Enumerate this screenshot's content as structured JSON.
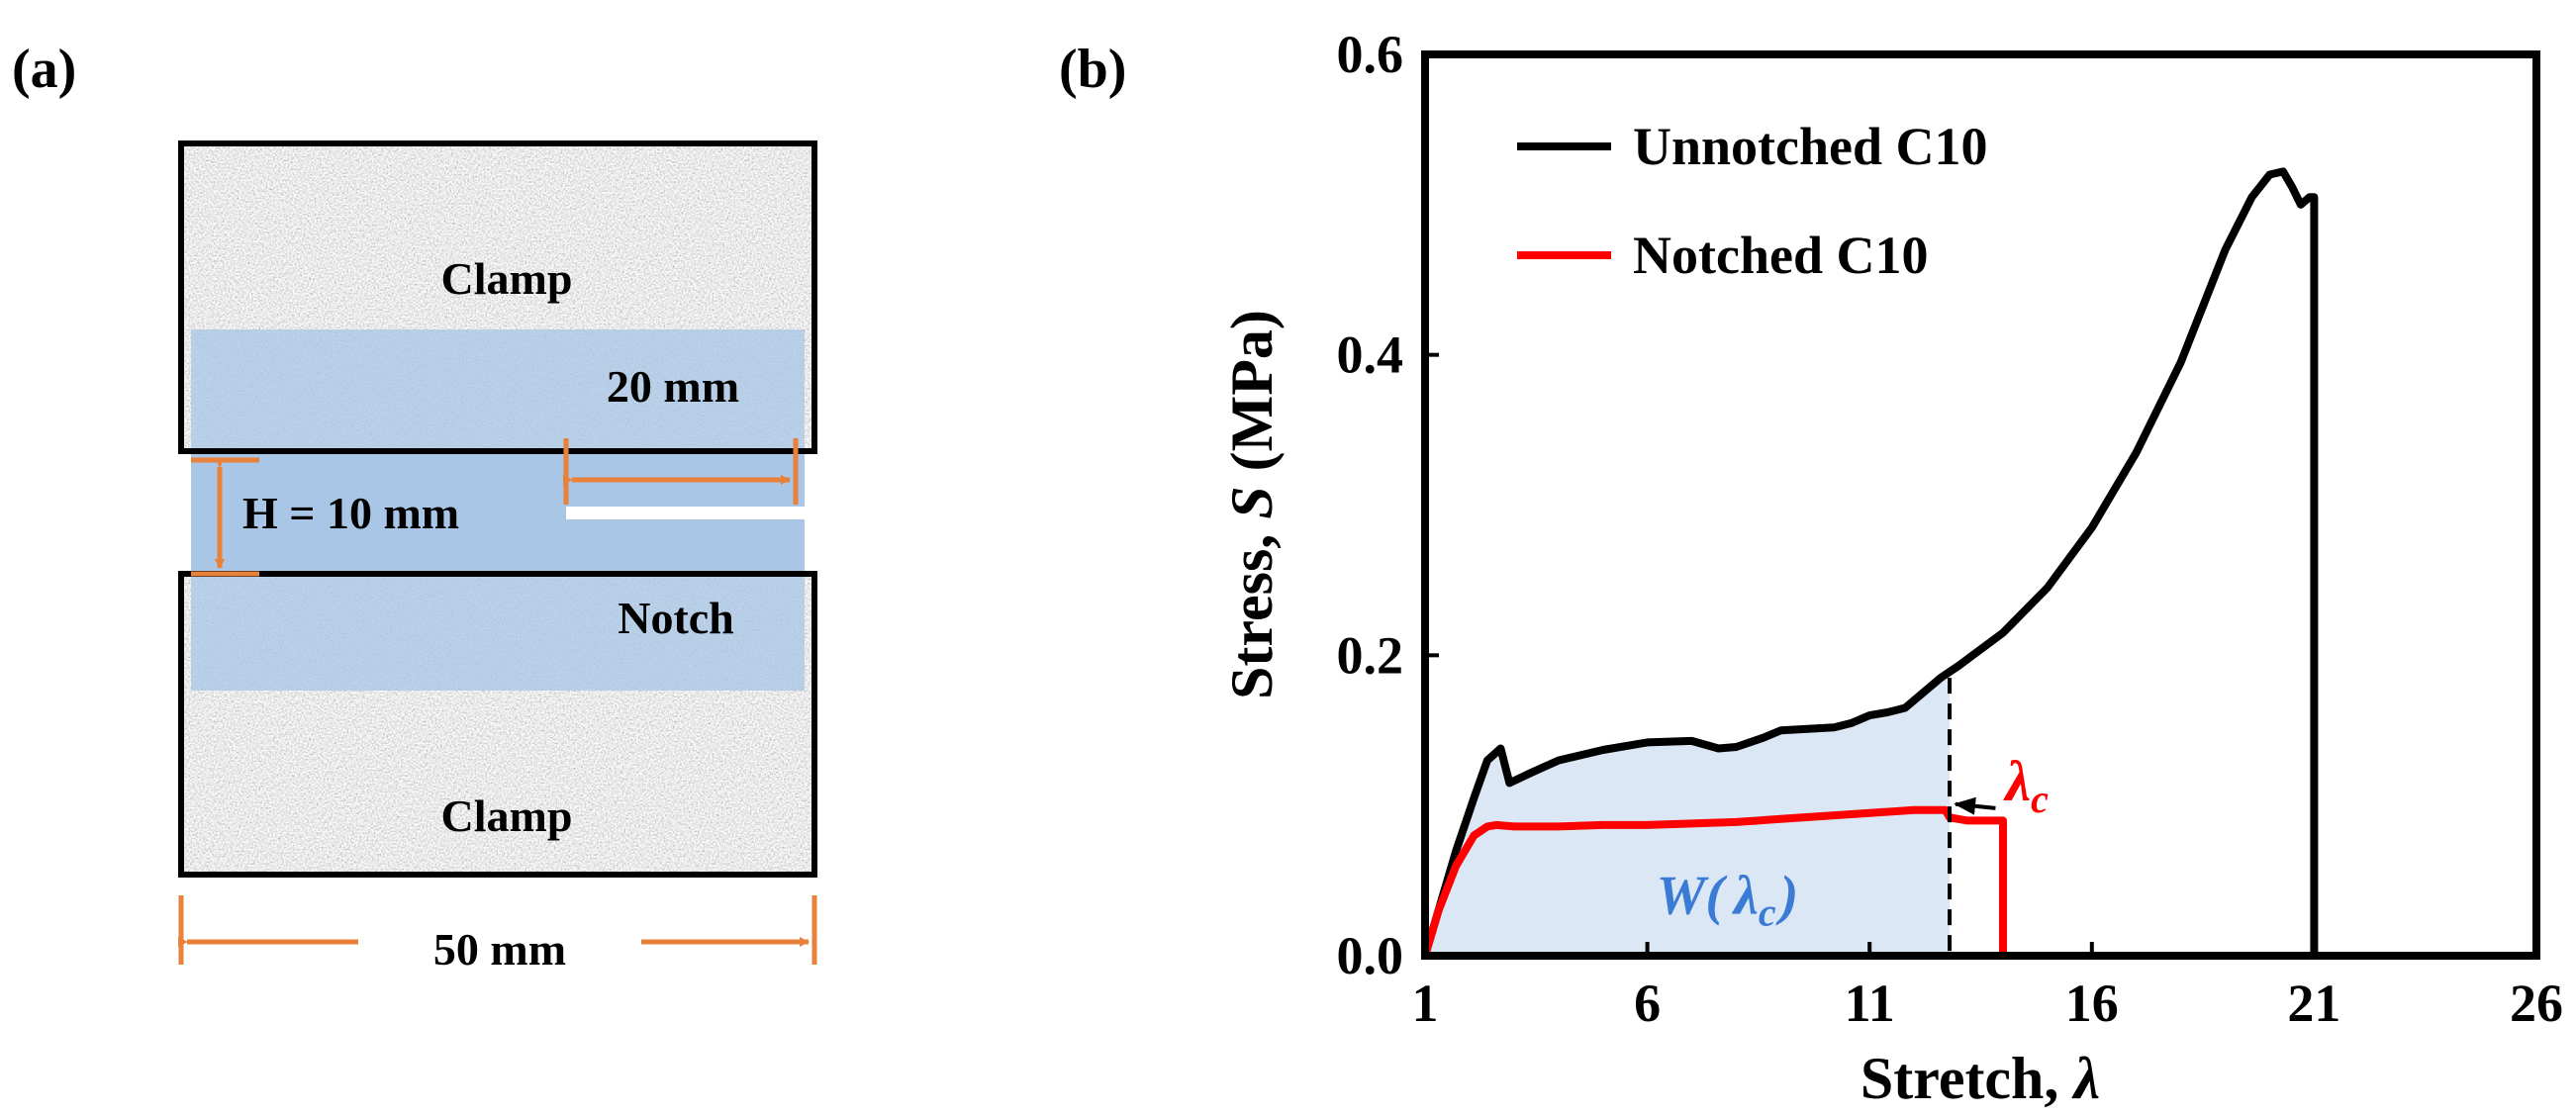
{
  "panel_a": {
    "label": "(a)",
    "clamp_top": "Clamp",
    "clamp_bottom": "Clamp",
    "notch": "Notch",
    "dim_width": "50 mm",
    "dim_height": "H = 10 mm",
    "dim_notch": "20 mm",
    "colors": {
      "overlay": "#a9c6e6",
      "dimension": "#e8823a",
      "frame": "#000000"
    }
  },
  "panel_b": {
    "label": "(b)",
    "lambda_c_symbol": "λ",
    "lambda_c_sub": "c",
    "work_label_w": "W(",
    "work_label_close": ")",
    "colors": {
      "unnotched": "#000000",
      "notched": "#ff0000",
      "area": "#dbe7f5",
      "work_text": "#3a7bd5"
    }
  },
  "chart_data": {
    "type": "line",
    "xlabel_text": "Stretch, ",
    "xlabel_symbol": "λ",
    "ylabel_text": "Stress, ",
    "ylabel_symbol": "S",
    "ylabel_unit": " (MPa)",
    "xlim": [
      1,
      26
    ],
    "ylim": [
      0,
      0.6
    ],
    "xticks": [
      "1",
      "6",
      "11",
      "16",
      "21",
      "26"
    ],
    "yticks": [
      "0.0",
      "0.2",
      "0.4",
      "0.6"
    ],
    "legend_position": "top-left",
    "series": [
      {
        "name": "Unnotched C10",
        "color": "#000000",
        "x": [
          1.0,
          1.3,
          1.7,
          2.1,
          2.4,
          2.7,
          2.9,
          3.4,
          4.0,
          5.0,
          6.0,
          7.0,
          7.6,
          8.0,
          8.6,
          9.0,
          9.6,
          10.2,
          10.6,
          11.0,
          11.4,
          11.8,
          12.2,
          12.6,
          13.0,
          14.0,
          15.0,
          16.0,
          17.0,
          18.0,
          19.0,
          19.6,
          20.0,
          20.3,
          20.5,
          20.7,
          20.9,
          21.0,
          21.0
        ],
        "y": [
          0.0,
          0.03,
          0.07,
          0.105,
          0.13,
          0.138,
          0.115,
          0.122,
          0.13,
          0.137,
          0.142,
          0.143,
          0.138,
          0.139,
          0.145,
          0.15,
          0.151,
          0.152,
          0.155,
          0.16,
          0.162,
          0.165,
          0.175,
          0.185,
          0.193,
          0.215,
          0.245,
          0.285,
          0.335,
          0.395,
          0.47,
          0.505,
          0.52,
          0.522,
          0.512,
          0.5,
          0.505,
          0.505,
          0.0
        ]
      },
      {
        "name": "Notched C10",
        "color": "#ff0000",
        "x": [
          1.0,
          1.3,
          1.7,
          2.1,
          2.4,
          2.6,
          3.0,
          4.0,
          5.0,
          6.0,
          7.0,
          8.0,
          9.0,
          10.0,
          11.0,
          12.0,
          12.7,
          12.8,
          13.2,
          13.6,
          14.0,
          14.0
        ],
        "y": [
          0.0,
          0.03,
          0.06,
          0.08,
          0.086,
          0.087,
          0.086,
          0.086,
          0.087,
          0.087,
          0.088,
          0.089,
          0.091,
          0.093,
          0.095,
          0.097,
          0.097,
          0.092,
          0.09,
          0.09,
          0.09,
          0.0
        ]
      }
    ],
    "annotations": [
      {
        "type": "vline",
        "x": 12.8,
        "y_top": 0.185,
        "style": "dashed"
      },
      {
        "type": "label",
        "text": "λc",
        "x": 14.5,
        "y": 0.118,
        "arrow_to_x": 12.8,
        "arrow_to_y": 0.097
      },
      {
        "type": "shaded_area",
        "text": "W(λc)",
        "under": "Unnotched C10",
        "x_from": 1,
        "x_to": 12.8
      }
    ]
  }
}
